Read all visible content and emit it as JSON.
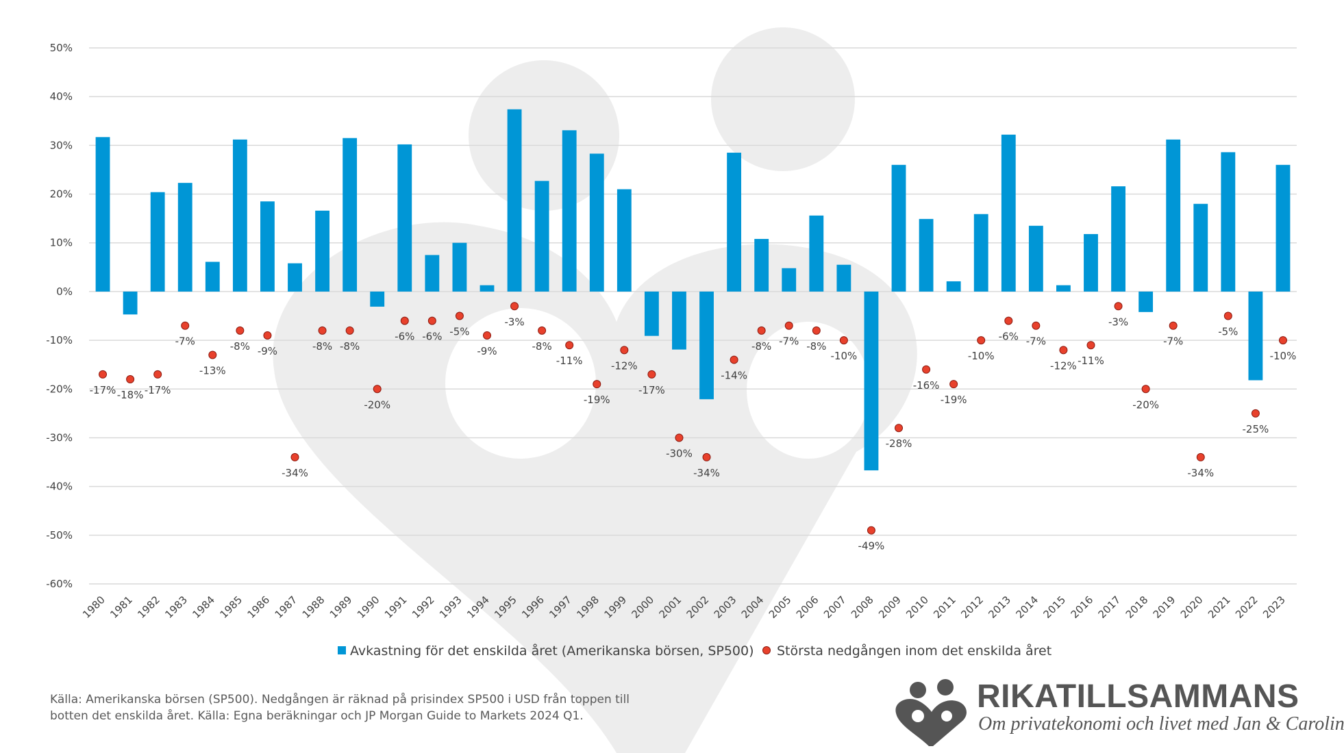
{
  "chart_data": {
    "type": "bar",
    "categories": [
      "1980",
      "1981",
      "1982",
      "1983",
      "1984",
      "1985",
      "1986",
      "1987",
      "1988",
      "1989",
      "1990",
      "1991",
      "1992",
      "1993",
      "1994",
      "1995",
      "1996",
      "1997",
      "1998",
      "1999",
      "2000",
      "2001",
      "2002",
      "2003",
      "2004",
      "2005",
      "2006",
      "2007",
      "2008",
      "2009",
      "2010",
      "2011",
      "2012",
      "2013",
      "2014",
      "2015",
      "2016",
      "2017",
      "2018",
      "2019",
      "2020",
      "2021",
      "2022",
      "2023"
    ],
    "series": [
      {
        "name": "Avkastning för det enskilda året (Amerikanska börsen, SP500)",
        "type": "bar",
        "color": "#0096D6",
        "values": [
          31.7,
          -4.7,
          20.4,
          22.3,
          6.1,
          31.2,
          18.5,
          5.8,
          16.6,
          31.5,
          -3.1,
          30.2,
          7.5,
          10.0,
          1.3,
          37.4,
          22.7,
          33.1,
          28.3,
          21.0,
          -9.1,
          -11.9,
          -22.1,
          28.5,
          10.8,
          4.8,
          15.6,
          5.5,
          -36.7,
          26.0,
          14.9,
          2.1,
          15.9,
          32.2,
          13.5,
          1.3,
          11.8,
          21.6,
          -4.2,
          31.2,
          18.0,
          28.6,
          -18.2,
          26.0
        ]
      },
      {
        "name": "Största nedgången inom det enskilda året",
        "type": "scatter",
        "color": "#E8412C",
        "values": [
          -17,
          -18,
          -17,
          -7,
          -13,
          -8,
          -9,
          -34,
          -8,
          -8,
          -20,
          -6,
          -6,
          -5,
          -9,
          -3,
          -8,
          -11,
          -19,
          -12,
          -17,
          -30,
          -34,
          -14,
          -8,
          -7,
          -8,
          -10,
          -49,
          -28,
          -16,
          -19,
          -10,
          -6,
          -7,
          -12,
          -11,
          -3,
          -20,
          -7,
          -34,
          -5,
          -25,
          -10
        ],
        "labels": [
          "-17%",
          "-18%",
          "-17%",
          "-7%",
          "-13%",
          "-8%",
          "-9%",
          "-34%",
          "-8%",
          "-8%",
          "-20%",
          "-6%",
          "-6%",
          "-5%",
          "-9%",
          "-3%",
          "-8%",
          "-11%",
          "-19%",
          "-12%",
          "-17%",
          "-30%",
          "-34%",
          "-14%",
          "-8%",
          "-7%",
          "-8%",
          "-10%",
          "-49%",
          "-28%",
          "-16%",
          "-19%",
          "-10%",
          "-6%",
          "-7%",
          "-12%",
          "-11%",
          "-3%",
          "-20%",
          "-7%",
          "-34%",
          "-5%",
          "-25%",
          "-10%"
        ]
      }
    ],
    "ylim": [
      -60,
      50
    ],
    "yticks": [
      50,
      40,
      30,
      20,
      10,
      0,
      -10,
      -20,
      -30,
      -40,
      -50,
      -60
    ],
    "ytick_labels": [
      "50%",
      "40%",
      "30%",
      "20%",
      "10%",
      "0%",
      "-10%",
      "-20%",
      "-30%",
      "-40%",
      "-50%",
      "-60%"
    ],
    "grid": true,
    "legend_position": "bottom"
  },
  "footer": {
    "source_line1": "Källa: Amerikanska börsen (SP500). Nedgången är räknad på prisindex SP500 i USD från toppen till",
    "source_line2": "botten det enskilda året. Källa: Egna beräkningar och JP Morgan Guide to Markets 2024 Q1."
  },
  "logo": {
    "brand": "RIKATILLSAMMANS",
    "tagline": "Om privatekonomi och livet med Jan & Caroline",
    "icon": "two-people-heart-icon",
    "color": "#555555"
  },
  "watermark": {
    "icon": "two-people-heart-icon",
    "color": "#E6E6E6"
  }
}
